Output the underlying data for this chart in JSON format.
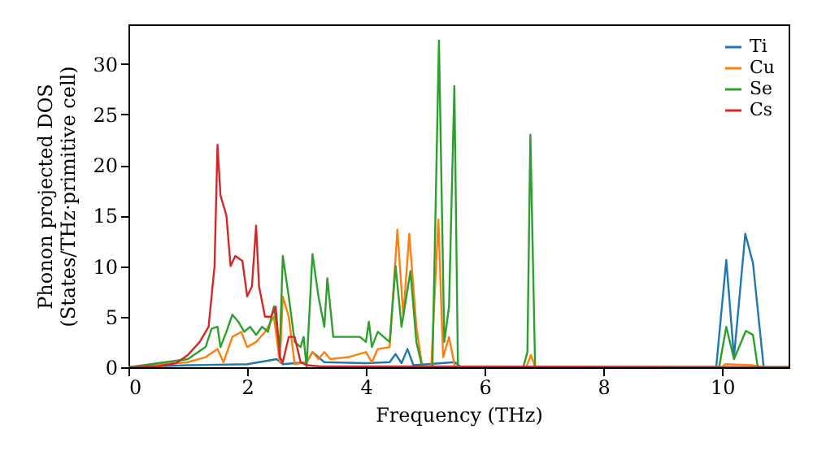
{
  "chart_data": {
    "type": "line",
    "xlabel": "Frequency (THz)",
    "ylabel": "Phonon projected DOS\n(States/THz·primitive cell)",
    "xlim": [
      0,
      11.12
    ],
    "ylim": [
      0,
      33.9
    ],
    "xticks": [
      0,
      2,
      4,
      6,
      8,
      10
    ],
    "yticks": [
      0,
      5,
      10,
      15,
      20,
      25,
      30
    ],
    "grid": false,
    "legend": "top right",
    "line_style": "solid",
    "marker": "none",
    "series": [
      {
        "name": "Ti",
        "color": "#1f77b4",
        "x": [
          0,
          1,
          2,
          2.5,
          2.6,
          3.0,
          3.1,
          3.3,
          4.0,
          4.4,
          4.5,
          4.6,
          4.7,
          4.8,
          5.5,
          5.6,
          9.9,
          10.07,
          10.2,
          10.39,
          10.52,
          10.7,
          11.12
        ],
        "values": [
          0,
          0.2,
          0.3,
          0.8,
          0.3,
          0.5,
          1.5,
          0.5,
          0.4,
          0.5,
          1.3,
          0.4,
          1.8,
          0.2,
          0.5,
          0,
          0,
          10.6,
          1,
          13.2,
          10.3,
          0,
          0
        ]
      },
      {
        "name": "Cu",
        "color": "#ff7f0e",
        "x": [
          0,
          1.0,
          1.3,
          1.5,
          1.6,
          1.75,
          1.9,
          2.0,
          2.15,
          2.3,
          2.45,
          2.55,
          2.6,
          2.7,
          2.8,
          3.0,
          3.1,
          3.2,
          3.3,
          3.4,
          3.7,
          4.0,
          4.1,
          4.2,
          4.4,
          4.53,
          4.63,
          4.73,
          4.85,
          4.95,
          5.1,
          5.22,
          5.3,
          5.4,
          5.5,
          6.7,
          6.78,
          6.85,
          10.0,
          10.05,
          10.5,
          10.7,
          11.12
        ],
        "values": [
          0,
          0.5,
          1,
          1.8,
          0.5,
          3,
          3.5,
          2,
          2.5,
          3.5,
          5,
          0.5,
          7,
          5,
          0.3,
          0.5,
          1.5,
          0.8,
          1.5,
          0.8,
          1.0,
          1.5,
          0.5,
          1.8,
          2,
          13.6,
          5,
          13.2,
          4,
          0,
          0,
          14.6,
          1,
          3,
          0,
          0,
          1.2,
          0,
          0,
          0.3,
          0.2,
          0,
          0
        ]
      },
      {
        "name": "Se",
        "color": "#2ca02c",
        "x": [
          0,
          1.0,
          1.3,
          1.4,
          1.5,
          1.55,
          1.65,
          1.75,
          1.85,
          1.95,
          2.05,
          2.15,
          2.25,
          2.35,
          2.45,
          2.55,
          2.6,
          2.7,
          2.8,
          2.9,
          2.95,
          3.0,
          3.1,
          3.2,
          3.3,
          3.35,
          3.45,
          3.6,
          3.9,
          4.0,
          4.05,
          4.1,
          4.2,
          4.4,
          4.5,
          4.6,
          4.75,
          4.85,
          4.95,
          5.12,
          5.23,
          5.32,
          5.4,
          5.49,
          5.55,
          6.65,
          6.72,
          6.77,
          6.85,
          9.95,
          10.07,
          10.2,
          10.4,
          10.52,
          10.6,
          11.12
        ],
        "values": [
          0,
          0.8,
          2,
          3.8,
          4,
          2,
          3.5,
          5.2,
          4.5,
          3.5,
          4,
          3.2,
          4,
          3.5,
          6,
          2,
          11,
          7,
          2.5,
          2,
          3,
          0,
          11.2,
          7,
          4,
          8.8,
          3,
          3,
          3,
          2.5,
          4.5,
          2,
          3.5,
          2.5,
          10,
          4,
          9.5,
          2.5,
          0,
          0,
          32.3,
          2.5,
          6,
          27.8,
          0,
          0,
          1.5,
          23,
          0,
          0,
          4,
          0.8,
          3.6,
          3.2,
          0,
          0
        ]
      },
      {
        "name": "Cs",
        "color": "#d62728",
        "x": [
          0,
          0.5,
          0.8,
          1.0,
          1.2,
          1.35,
          1.45,
          1.5,
          1.55,
          1.65,
          1.72,
          1.8,
          1.92,
          2.0,
          2.08,
          2.15,
          2.2,
          2.3,
          2.4,
          2.48,
          2.55,
          2.6,
          2.7,
          2.8,
          2.9,
          3.0,
          3.2,
          11.12
        ],
        "values": [
          0,
          0.1,
          0.4,
          1.2,
          2.5,
          4,
          10,
          22,
          17,
          15,
          10,
          11,
          10.5,
          7,
          8,
          14,
          8,
          5,
          5,
          6,
          1,
          0.5,
          3,
          3,
          0.5,
          0.2,
          0.1,
          0
        ]
      }
    ]
  }
}
